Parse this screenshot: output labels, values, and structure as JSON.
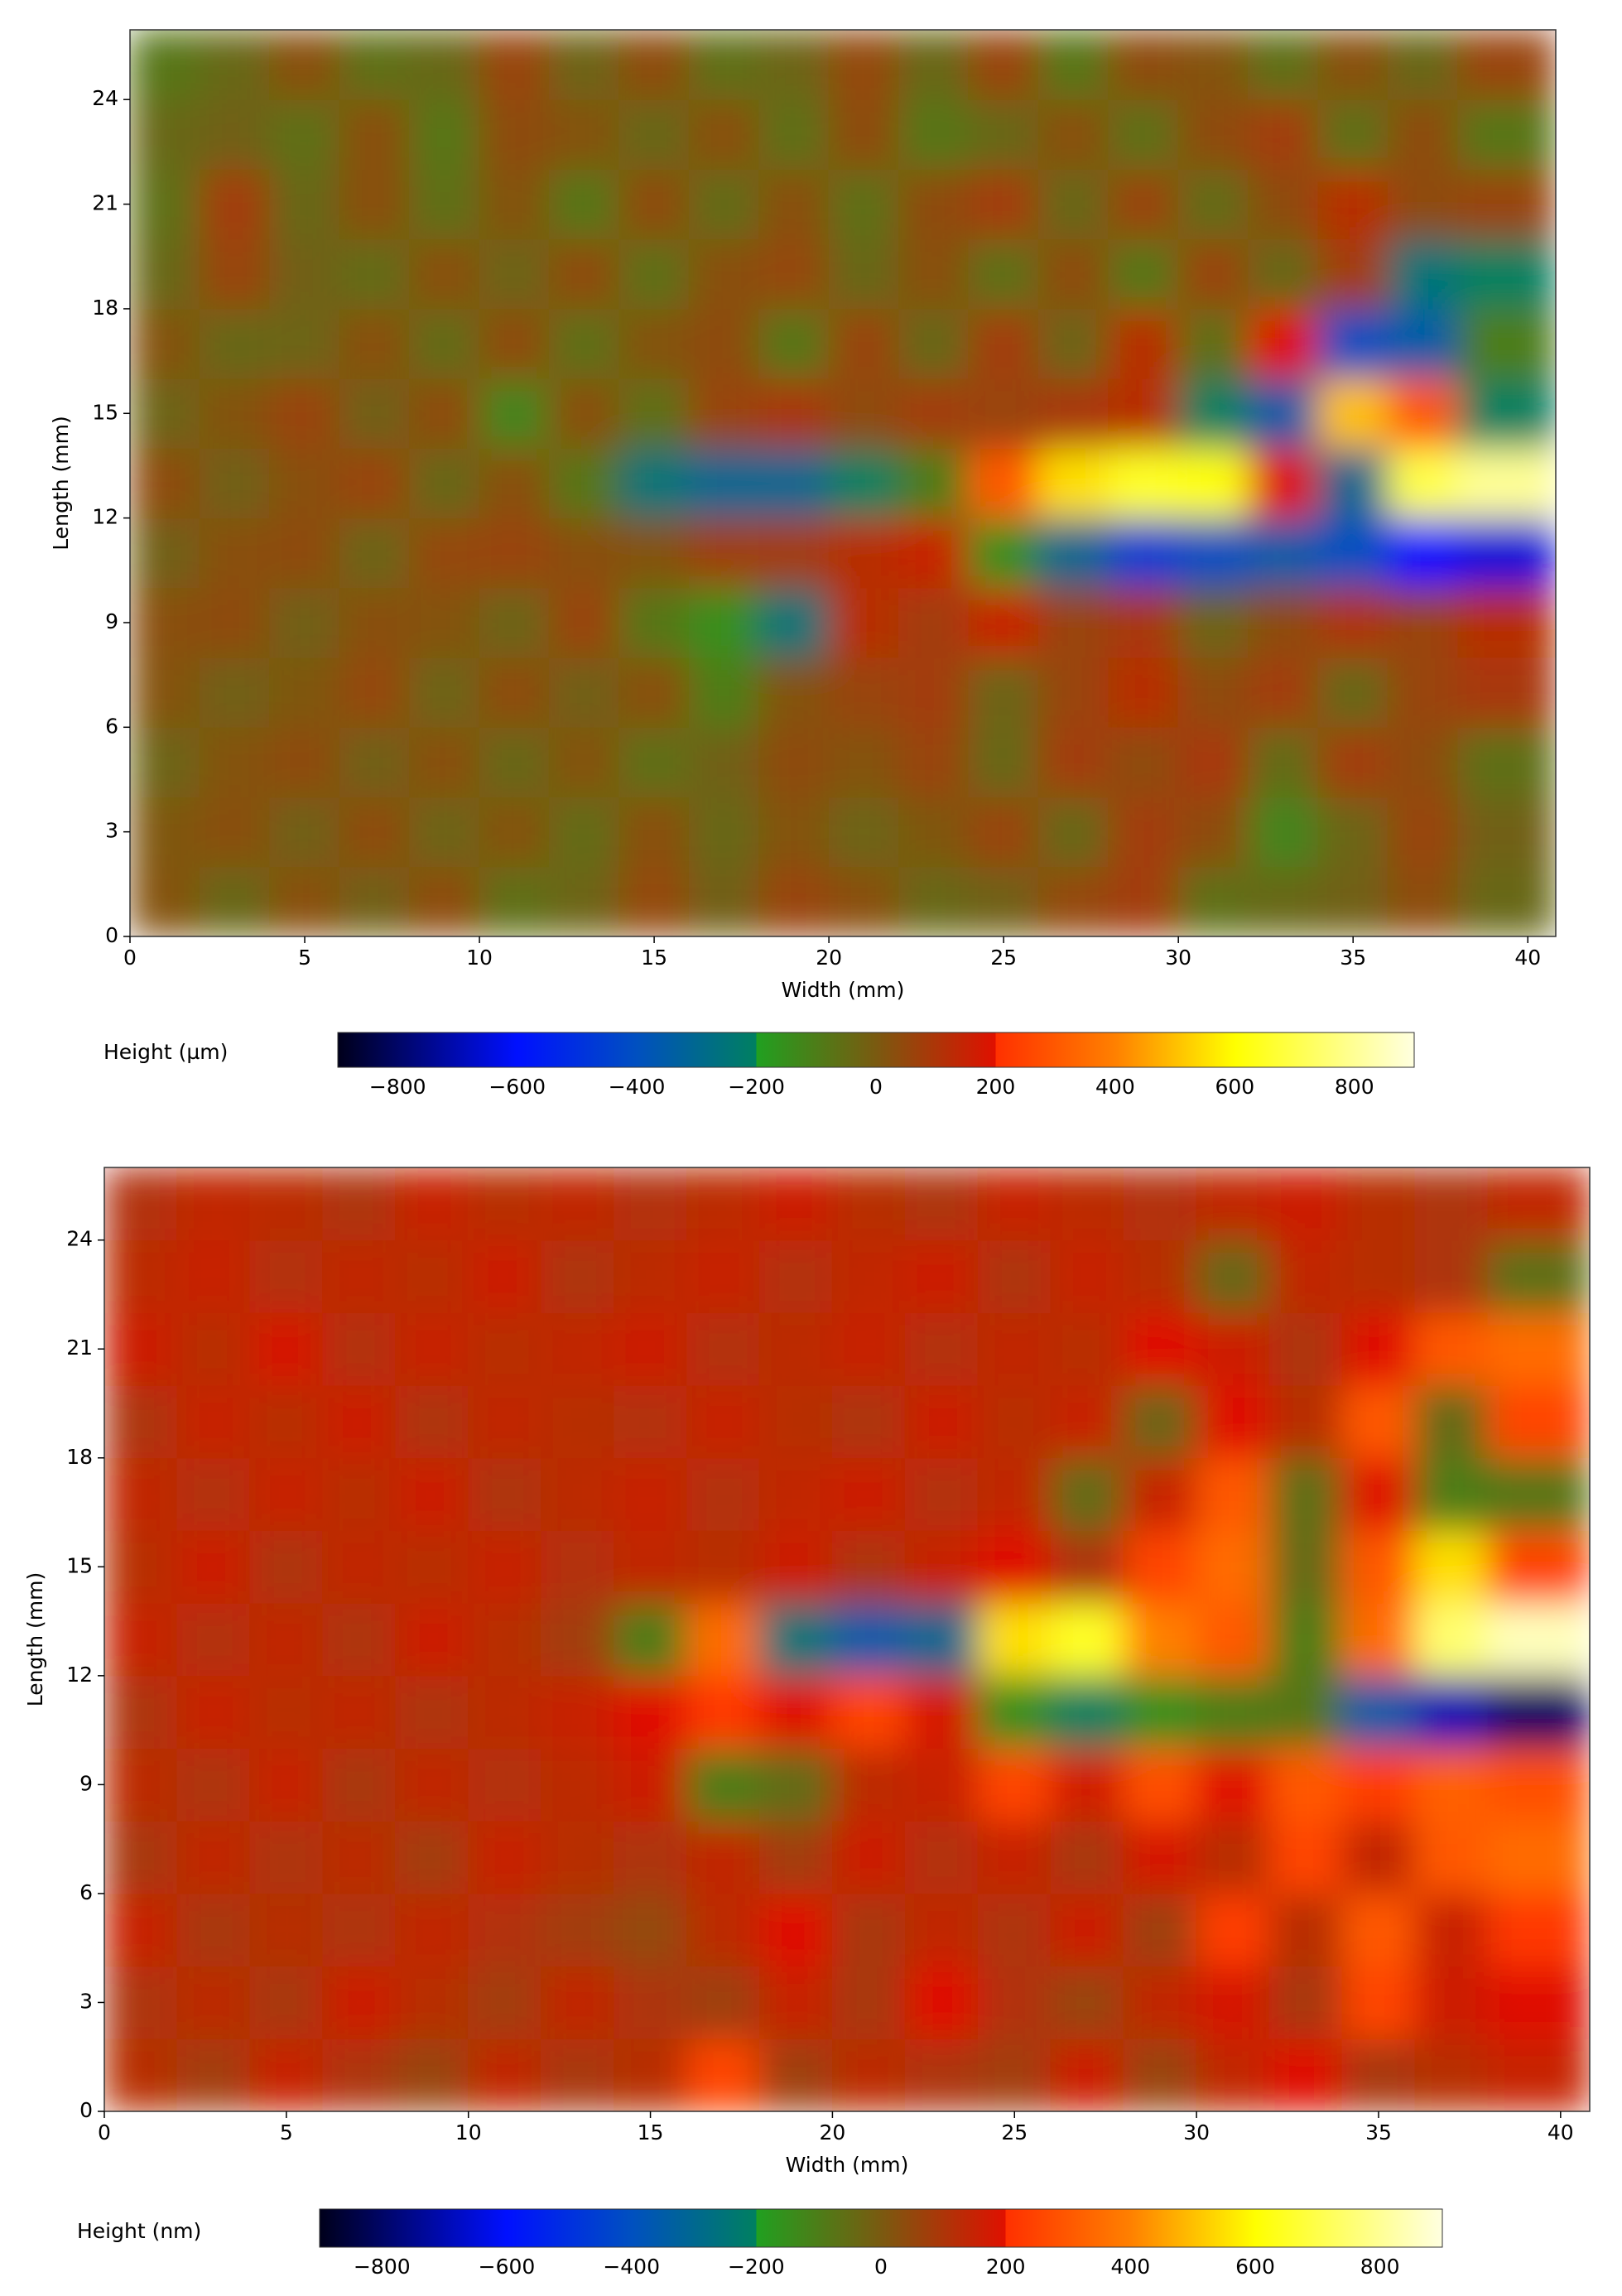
{
  "chart_data": [
    {
      "type": "heatmap",
      "xlabel": "Width  (mm)",
      "ylabel": "Length  (mm)",
      "xlim": [
        0,
        40.8
      ],
      "ylim": [
        0,
        26
      ],
      "xticks": [
        0,
        5,
        10,
        15,
        20,
        25,
        30,
        35,
        40
      ],
      "yticks": [
        0,
        3,
        6,
        9,
        12,
        15,
        18,
        21,
        24
      ],
      "x": [
        1,
        3,
        5,
        7,
        9,
        11,
        13,
        15,
        17,
        19,
        21,
        23,
        25,
        27,
        29,
        31,
        33,
        35,
        37,
        39
      ],
      "y": [
        1,
        3,
        5,
        7,
        9,
        11,
        13,
        15,
        17,
        19,
        21,
        23,
        25
      ],
      "z": [
        [
          20,
          -40,
          30,
          -20,
          40,
          -60,
          -30,
          50,
          -20,
          60,
          30,
          -40,
          -20,
          50,
          80,
          -60,
          -40,
          -20,
          40,
          -40
        ],
        [
          10,
          30,
          -20,
          40,
          -30,
          20,
          -50,
          30,
          -40,
          20,
          -30,
          10,
          60,
          -40,
          80,
          40,
          -120,
          -30,
          60,
          -20
        ],
        [
          -30,
          20,
          40,
          -20,
          30,
          -40,
          20,
          -60,
          -20,
          40,
          20,
          60,
          -40,
          80,
          40,
          90,
          -50,
          80,
          40,
          -60
        ],
        [
          20,
          -20,
          10,
          50,
          -30,
          40,
          -20,
          30,
          -100,
          20,
          60,
          80,
          -30,
          60,
          120,
          40,
          80,
          -40,
          60,
          90
        ],
        [
          30,
          40,
          -20,
          30,
          20,
          -30,
          60,
          -80,
          -150,
          -250,
          120,
          80,
          150,
          60,
          90,
          -30,
          40,
          100,
          60,
          120
        ],
        [
          -20,
          30,
          40,
          -30,
          50,
          60,
          30,
          20,
          70,
          80,
          120,
          150,
          -150,
          -300,
          -450,
          -400,
          -350,
          -400,
          -600,
          -650
        ],
        [
          40,
          -20,
          30,
          60,
          -40,
          30,
          -80,
          -250,
          -300,
          -300,
          -200,
          -100,
          300,
          550,
          650,
          600,
          200,
          -300,
          700,
          800
        ],
        [
          -30,
          20,
          60,
          -20,
          40,
          -120,
          30,
          -60,
          60,
          90,
          40,
          80,
          60,
          90,
          120,
          -200,
          -350,
          500,
          300,
          -200
        ],
        [
          20,
          -40,
          -30,
          30,
          -50,
          40,
          -60,
          20,
          40,
          -80,
          60,
          -40,
          80,
          -30,
          120,
          -60,
          200,
          -400,
          -350,
          -100
        ],
        [
          -40,
          60,
          -20,
          -50,
          30,
          -30,
          40,
          -60,
          30,
          50,
          -40,
          30,
          -60,
          40,
          -80,
          60,
          -40,
          80,
          -250,
          -200
        ],
        [
          -60,
          80,
          -40,
          30,
          -60,
          20,
          -80,
          40,
          -50,
          30,
          -60,
          40,
          80,
          -40,
          60,
          -50,
          40,
          120,
          40,
          60
        ],
        [
          -40,
          -20,
          -60,
          30,
          -80,
          40,
          20,
          -40,
          30,
          -60,
          40,
          -80,
          -40,
          30,
          -60,
          40,
          80,
          -60,
          40,
          -80
        ],
        [
          -80,
          -40,
          30,
          -60,
          -40,
          60,
          -30,
          40,
          -60,
          -30,
          50,
          -40,
          60,
          -80,
          40,
          20,
          -60,
          30,
          -40,
          60
        ]
      ],
      "colorbar": {
        "label": "Height  (µm)",
        "zlim": [
          -900,
          900
        ],
        "ticks": [
          {
            "value": -800,
            "label": "−800"
          },
          {
            "value": -600,
            "label": "−600"
          },
          {
            "value": -400,
            "label": "−400"
          },
          {
            "value": -200,
            "label": "−200"
          },
          0,
          200,
          400,
          600,
          800
        ],
        "colorscale": [
          [
            -900,
            "#00001a"
          ],
          [
            -600,
            "#0010ff"
          ],
          [
            -400,
            "#0050c0"
          ],
          [
            -200,
            "#008060"
          ],
          [
            -200,
            "#20a020"
          ],
          [
            0,
            "#7a5a10"
          ],
          [
            200,
            "#e01000"
          ],
          [
            200,
            "#ff3000"
          ],
          [
            400,
            "#ff8000"
          ],
          [
            600,
            "#ffff00"
          ],
          [
            900,
            "#ffffe0"
          ]
        ]
      }
    },
    {
      "type": "heatmap",
      "xlabel": "Width  (mm)",
      "ylabel": "Length  (mm)",
      "xlim": [
        0,
        40.8
      ],
      "ylim": [
        0,
        26
      ],
      "xticks": [
        0,
        5,
        10,
        15,
        20,
        25,
        30,
        35,
        40
      ],
      "yticks": [
        0,
        3,
        6,
        9,
        12,
        15,
        18,
        21,
        24
      ],
      "x": [
        1,
        3,
        5,
        7,
        9,
        11,
        13,
        15,
        17,
        19,
        21,
        23,
        25,
        27,
        29,
        31,
        33,
        35,
        37,
        39
      ],
      "y": [
        1,
        3,
        5,
        7,
        9,
        11,
        13,
        15,
        17,
        19,
        21,
        23,
        25
      ],
      "z": [
        [
          120,
          80,
          150,
          100,
          60,
          140,
          90,
          120,
          250,
          70,
          130,
          100,
          80,
          160,
          60,
          140,
          200,
          90,
          120,
          150
        ],
        [
          100,
          130,
          90,
          160,
          120,
          80,
          140,
          100,
          70,
          150,
          90,
          200,
          110,
          60,
          140,
          180,
          90,
          250,
          160,
          200
        ],
        [
          150,
          90,
          120,
          100,
          140,
          110,
          80,
          50,
          130,
          200,
          90,
          140,
          100,
          160,
          70,
          230,
          120,
          300,
          150,
          220
        ],
        [
          90,
          140,
          100,
          130,
          80,
          150,
          120,
          100,
          140,
          80,
          160,
          110,
          150,
          90,
          180,
          120,
          250,
          140,
          300,
          350
        ],
        [
          130,
          100,
          150,
          90,
          140,
          110,
          130,
          160,
          -100,
          -50,
          130,
          150,
          250,
          170,
          280,
          200,
          300,
          230,
          320,
          280
        ],
        [
          100,
          150,
          120,
          140,
          100,
          130,
          150,
          200,
          220,
          200,
          250,
          180,
          -150,
          -200,
          -150,
          -100,
          -80,
          -350,
          -700,
          -800
        ],
        [
          150,
          110,
          140,
          100,
          160,
          120,
          80,
          -100,
          350,
          -250,
          -350,
          -300,
          550,
          650,
          400,
          300,
          -100,
          350,
          750,
          850
        ],
        [
          120,
          160,
          100,
          140,
          120,
          150,
          110,
          140,
          120,
          160,
          100,
          150,
          200,
          100,
          250,
          350,
          -50,
          300,
          550,
          250
        ],
        [
          140,
          110,
          150,
          120,
          160,
          100,
          130,
          150,
          110,
          140,
          160,
          110,
          140,
          -50,
          150,
          300,
          -60,
          200,
          -100,
          -80
        ],
        [
          100,
          150,
          120,
          160,
          100,
          140,
          120,
          110,
          150,
          120,
          100,
          160,
          120,
          150,
          -30,
          200,
          120,
          300,
          -50,
          250
        ],
        [
          160,
          120,
          180,
          110,
          150,
          120,
          140,
          160,
          110,
          130,
          150,
          110,
          140,
          120,
          200,
          160,
          100,
          200,
          300,
          350
        ],
        [
          130,
          150,
          110,
          140,
          120,
          160,
          100,
          130,
          150,
          110,
          140,
          160,
          100,
          150,
          120,
          -40,
          140,
          120,
          100,
          -60
        ],
        [
          110,
          140,
          130,
          100,
          150,
          120,
          140,
          110,
          130,
          160,
          120,
          100,
          150,
          130,
          110,
          140,
          160,
          120,
          100,
          140
        ]
      ],
      "colorbar": {
        "label": "Height  (nm)",
        "zlim": [
          -900,
          900
        ],
        "ticks": [
          {
            "value": -800,
            "label": "−800"
          },
          {
            "value": -600,
            "label": "−600"
          },
          {
            "value": -400,
            "label": "−400"
          },
          {
            "value": -200,
            "label": "−200"
          },
          0,
          200,
          400,
          600,
          800
        ],
        "colorscale": [
          [
            -900,
            "#00001a"
          ],
          [
            -600,
            "#0010ff"
          ],
          [
            -400,
            "#0050c0"
          ],
          [
            -200,
            "#008060"
          ],
          [
            -200,
            "#20a020"
          ],
          [
            0,
            "#7a5a10"
          ],
          [
            200,
            "#e01000"
          ],
          [
            200,
            "#ff3000"
          ],
          [
            400,
            "#ff8000"
          ],
          [
            600,
            "#ffff00"
          ],
          [
            900,
            "#ffffe0"
          ]
        ]
      }
    }
  ]
}
